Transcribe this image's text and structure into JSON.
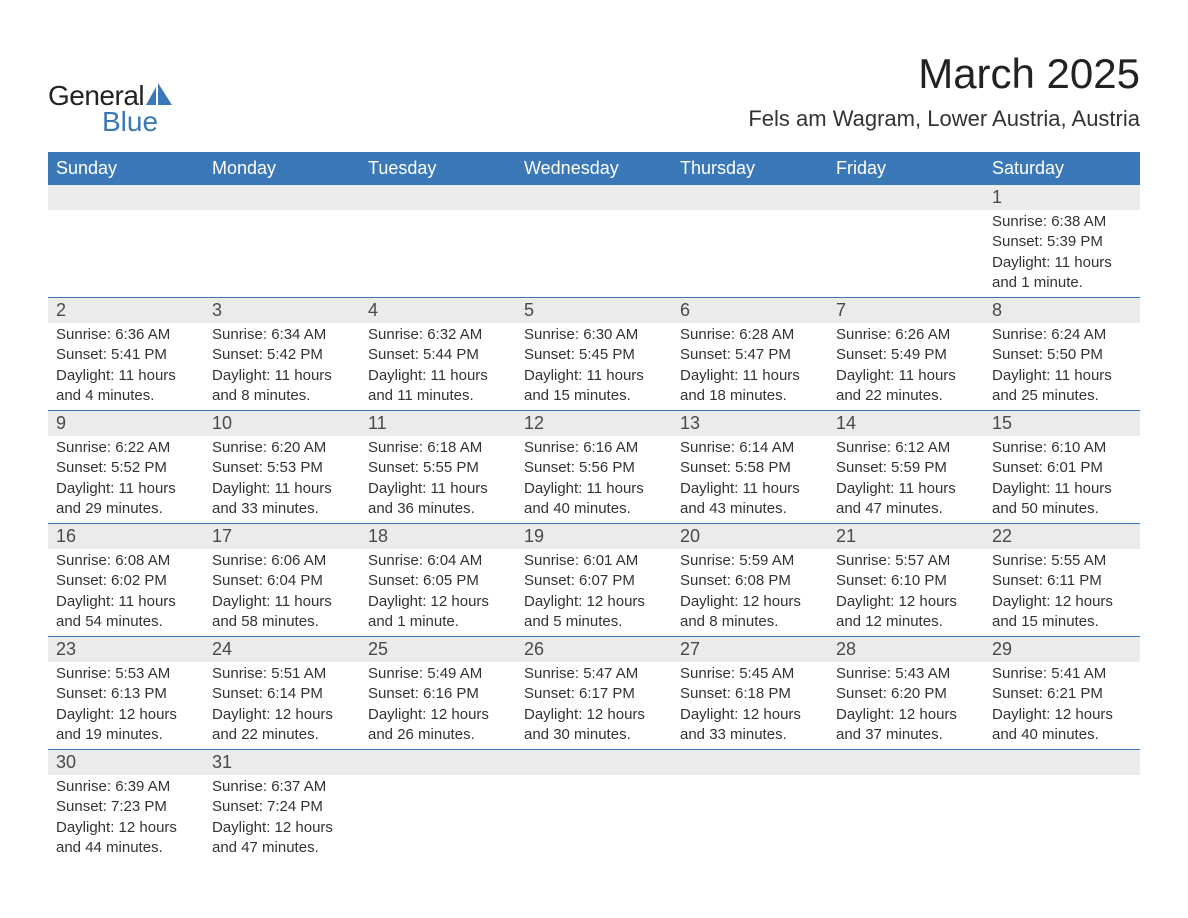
{
  "logo": {
    "text1": "General",
    "text2": "Blue",
    "sail_color": "#3a78b8"
  },
  "title": "March 2025",
  "location": "Fels am Wagram, Lower Austria, Austria",
  "colors": {
    "header_bg": "#3a78b8",
    "header_text": "#ffffff",
    "daynum_bg": "#ebebeb",
    "row_border": "#3a78b8",
    "body_text": "#333333",
    "logo_blue": "#3a78b8"
  },
  "weekdays": [
    "Sunday",
    "Monday",
    "Tuesday",
    "Wednesday",
    "Thursday",
    "Friday",
    "Saturday"
  ],
  "weeks": [
    [
      null,
      null,
      null,
      null,
      null,
      null,
      {
        "n": "1",
        "sr": "Sunrise: 6:38 AM",
        "ss": "Sunset: 5:39 PM",
        "d1": "Daylight: 11 hours",
        "d2": "and 1 minute."
      }
    ],
    [
      {
        "n": "2",
        "sr": "Sunrise: 6:36 AM",
        "ss": "Sunset: 5:41 PM",
        "d1": "Daylight: 11 hours",
        "d2": "and 4 minutes."
      },
      {
        "n": "3",
        "sr": "Sunrise: 6:34 AM",
        "ss": "Sunset: 5:42 PM",
        "d1": "Daylight: 11 hours",
        "d2": "and 8 minutes."
      },
      {
        "n": "4",
        "sr": "Sunrise: 6:32 AM",
        "ss": "Sunset: 5:44 PM",
        "d1": "Daylight: 11 hours",
        "d2": "and 11 minutes."
      },
      {
        "n": "5",
        "sr": "Sunrise: 6:30 AM",
        "ss": "Sunset: 5:45 PM",
        "d1": "Daylight: 11 hours",
        "d2": "and 15 minutes."
      },
      {
        "n": "6",
        "sr": "Sunrise: 6:28 AM",
        "ss": "Sunset: 5:47 PM",
        "d1": "Daylight: 11 hours",
        "d2": "and 18 minutes."
      },
      {
        "n": "7",
        "sr": "Sunrise: 6:26 AM",
        "ss": "Sunset: 5:49 PM",
        "d1": "Daylight: 11 hours",
        "d2": "and 22 minutes."
      },
      {
        "n": "8",
        "sr": "Sunrise: 6:24 AM",
        "ss": "Sunset: 5:50 PM",
        "d1": "Daylight: 11 hours",
        "d2": "and 25 minutes."
      }
    ],
    [
      {
        "n": "9",
        "sr": "Sunrise: 6:22 AM",
        "ss": "Sunset: 5:52 PM",
        "d1": "Daylight: 11 hours",
        "d2": "and 29 minutes."
      },
      {
        "n": "10",
        "sr": "Sunrise: 6:20 AM",
        "ss": "Sunset: 5:53 PM",
        "d1": "Daylight: 11 hours",
        "d2": "and 33 minutes."
      },
      {
        "n": "11",
        "sr": "Sunrise: 6:18 AM",
        "ss": "Sunset: 5:55 PM",
        "d1": "Daylight: 11 hours",
        "d2": "and 36 minutes."
      },
      {
        "n": "12",
        "sr": "Sunrise: 6:16 AM",
        "ss": "Sunset: 5:56 PM",
        "d1": "Daylight: 11 hours",
        "d2": "and 40 minutes."
      },
      {
        "n": "13",
        "sr": "Sunrise: 6:14 AM",
        "ss": "Sunset: 5:58 PM",
        "d1": "Daylight: 11 hours",
        "d2": "and 43 minutes."
      },
      {
        "n": "14",
        "sr": "Sunrise: 6:12 AM",
        "ss": "Sunset: 5:59 PM",
        "d1": "Daylight: 11 hours",
        "d2": "and 47 minutes."
      },
      {
        "n": "15",
        "sr": "Sunrise: 6:10 AM",
        "ss": "Sunset: 6:01 PM",
        "d1": "Daylight: 11 hours",
        "d2": "and 50 minutes."
      }
    ],
    [
      {
        "n": "16",
        "sr": "Sunrise: 6:08 AM",
        "ss": "Sunset: 6:02 PM",
        "d1": "Daylight: 11 hours",
        "d2": "and 54 minutes."
      },
      {
        "n": "17",
        "sr": "Sunrise: 6:06 AM",
        "ss": "Sunset: 6:04 PM",
        "d1": "Daylight: 11 hours",
        "d2": "and 58 minutes."
      },
      {
        "n": "18",
        "sr": "Sunrise: 6:04 AM",
        "ss": "Sunset: 6:05 PM",
        "d1": "Daylight: 12 hours",
        "d2": "and 1 minute."
      },
      {
        "n": "19",
        "sr": "Sunrise: 6:01 AM",
        "ss": "Sunset: 6:07 PM",
        "d1": "Daylight: 12 hours",
        "d2": "and 5 minutes."
      },
      {
        "n": "20",
        "sr": "Sunrise: 5:59 AM",
        "ss": "Sunset: 6:08 PM",
        "d1": "Daylight: 12 hours",
        "d2": "and 8 minutes."
      },
      {
        "n": "21",
        "sr": "Sunrise: 5:57 AM",
        "ss": "Sunset: 6:10 PM",
        "d1": "Daylight: 12 hours",
        "d2": "and 12 minutes."
      },
      {
        "n": "22",
        "sr": "Sunrise: 5:55 AM",
        "ss": "Sunset: 6:11 PM",
        "d1": "Daylight: 12 hours",
        "d2": "and 15 minutes."
      }
    ],
    [
      {
        "n": "23",
        "sr": "Sunrise: 5:53 AM",
        "ss": "Sunset: 6:13 PM",
        "d1": "Daylight: 12 hours",
        "d2": "and 19 minutes."
      },
      {
        "n": "24",
        "sr": "Sunrise: 5:51 AM",
        "ss": "Sunset: 6:14 PM",
        "d1": "Daylight: 12 hours",
        "d2": "and 22 minutes."
      },
      {
        "n": "25",
        "sr": "Sunrise: 5:49 AM",
        "ss": "Sunset: 6:16 PM",
        "d1": "Daylight: 12 hours",
        "d2": "and 26 minutes."
      },
      {
        "n": "26",
        "sr": "Sunrise: 5:47 AM",
        "ss": "Sunset: 6:17 PM",
        "d1": "Daylight: 12 hours",
        "d2": "and 30 minutes."
      },
      {
        "n": "27",
        "sr": "Sunrise: 5:45 AM",
        "ss": "Sunset: 6:18 PM",
        "d1": "Daylight: 12 hours",
        "d2": "and 33 minutes."
      },
      {
        "n": "28",
        "sr": "Sunrise: 5:43 AM",
        "ss": "Sunset: 6:20 PM",
        "d1": "Daylight: 12 hours",
        "d2": "and 37 minutes."
      },
      {
        "n": "29",
        "sr": "Sunrise: 5:41 AM",
        "ss": "Sunset: 6:21 PM",
        "d1": "Daylight: 12 hours",
        "d2": "and 40 minutes."
      }
    ],
    [
      {
        "n": "30",
        "sr": "Sunrise: 6:39 AM",
        "ss": "Sunset: 7:23 PM",
        "d1": "Daylight: 12 hours",
        "d2": "and 44 minutes."
      },
      {
        "n": "31",
        "sr": "Sunrise: 6:37 AM",
        "ss": "Sunset: 7:24 PM",
        "d1": "Daylight: 12 hours",
        "d2": "and 47 minutes."
      },
      null,
      null,
      null,
      null,
      null
    ]
  ]
}
